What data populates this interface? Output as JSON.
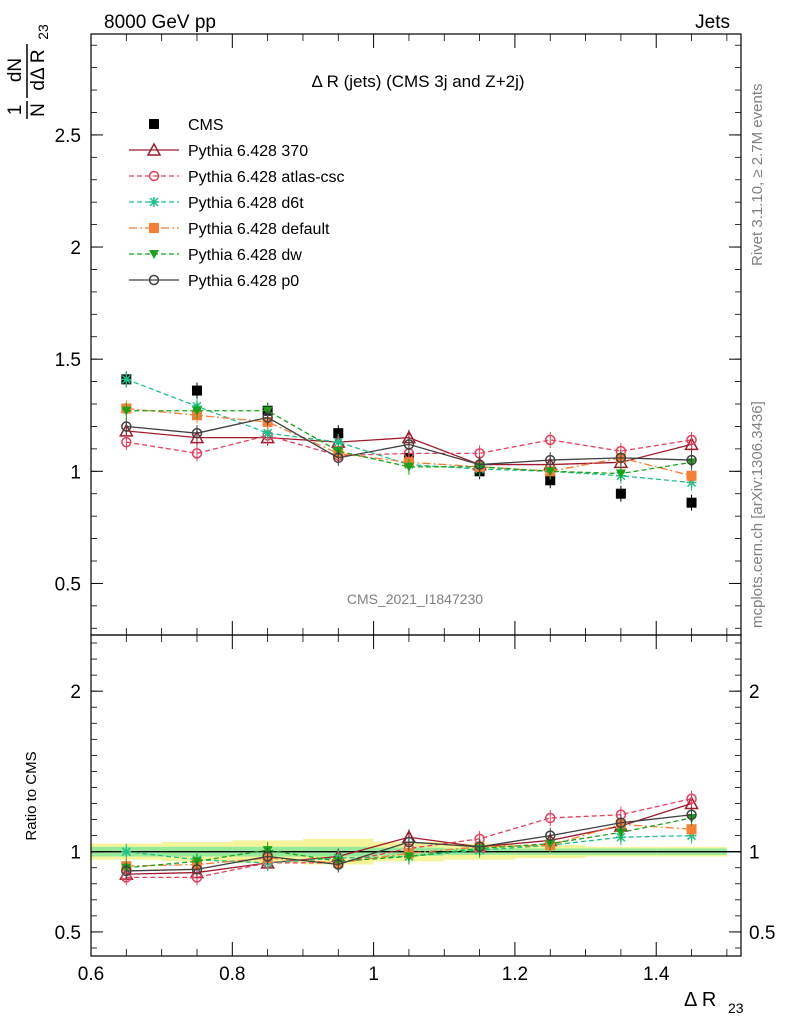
{
  "header": {
    "left": "8000 GeV pp",
    "right": "Jets",
    "side_top": "Rivet 3.1.10, ≥ 2.7M events",
    "side_bottom": "mcplots.cern.ch [arXiv:1306.3436]"
  },
  "chart_data": [
    {
      "type": "line",
      "title": "Δ R (jets) (CMS 3j and Z+2j)",
      "watermark": "CMS_2021_I1847230",
      "ylabel_parts": {
        "num": "1",
        "den": "N",
        "dnum": "dN",
        "dden": "dΔ R",
        "sub": "23"
      },
      "xlim": [
        0.6,
        1.52
      ],
      "ylim": [
        0.27,
        2.95
      ],
      "yticks": [
        0.5,
        1,
        1.5,
        2,
        2.5
      ],
      "ytick_labels": [
        "0.5",
        "1",
        "1.5",
        "2",
        "2.5"
      ],
      "x": [
        0.65,
        0.75,
        0.85,
        0.95,
        1.05,
        1.15,
        1.25,
        1.35,
        1.45
      ],
      "legend_position": "top-left",
      "series": [
        {
          "name": "CMS",
          "color": "#000000",
          "marker": "square",
          "line": "none",
          "values": [
            1.41,
            1.36,
            1.27,
            1.17,
            1.06,
            1.0,
            0.96,
            0.9,
            0.86
          ]
        },
        {
          "name": "Pythia 6.428 370",
          "color": "#a01b2b",
          "marker": "triangle-open",
          "line": "solid",
          "values": [
            1.18,
            1.15,
            1.15,
            1.13,
            1.15,
            1.03,
            1.03,
            1.04,
            1.12
          ]
        },
        {
          "name": "Pythia 6.428 atlas-csc",
          "color": "#e83e5c",
          "marker": "circle-open",
          "line": "dashed",
          "values": [
            1.13,
            1.08,
            1.16,
            1.07,
            1.08,
            1.08,
            1.14,
            1.09,
            1.14
          ]
        },
        {
          "name": "Pythia 6.428 d6t",
          "color": "#1ec08a",
          "marker": "star",
          "line": "dashed",
          "values": [
            1.41,
            1.29,
            1.17,
            1.13,
            1.03,
            1.01,
            1.0,
            0.98,
            0.95
          ]
        },
        {
          "name": "Pythia 6.428 default",
          "color": "#f47f35",
          "marker": "square",
          "line": "dashdot",
          "values": [
            1.28,
            1.25,
            1.22,
            1.08,
            1.04,
            1.02,
            1.0,
            1.06,
            0.98
          ]
        },
        {
          "name": "Pythia 6.428 dw",
          "color": "#1aa31a",
          "marker": "triangle-down",
          "line": "dashed",
          "values": [
            1.27,
            1.27,
            1.27,
            1.09,
            1.02,
            1.02,
            1.0,
            0.99,
            1.04
          ]
        },
        {
          "name": "Pythia 6.428 p0",
          "color": "#404040",
          "marker": "circle-open",
          "line": "solid",
          "values": [
            1.2,
            1.17,
            1.24,
            1.06,
            1.12,
            1.03,
            1.05,
            1.06,
            1.05
          ]
        }
      ]
    },
    {
      "type": "line",
      "ylabel": "Ratio to CMS",
      "xlabel_main": "Δ R",
      "xlabel_sub": "23",
      "xlim": [
        0.6,
        1.52
      ],
      "ylim": [
        0.35,
        2.35
      ],
      "yticks": [
        0.5,
        1,
        2
      ],
      "ytick_labels": [
        "0.5",
        "1",
        "2"
      ],
      "xticks": [
        0.6,
        0.8,
        1.0,
        1.2,
        1.4
      ],
      "xtick_labels": [
        "0.6",
        "0.8",
        "1",
        "1.2",
        "1.4"
      ],
      "x": [
        0.65,
        0.75,
        0.85,
        0.95,
        1.05,
        1.15,
        1.25,
        1.35,
        1.45
      ],
      "band_stat": [
        0.03,
        0.03,
        0.03,
        0.03,
        0.025,
        0.02,
        0.02,
        0.02,
        0.02
      ],
      "band_total": [
        0.05,
        0.06,
        0.07,
        0.08,
        0.06,
        0.05,
        0.04,
        0.03,
        0.03
      ],
      "series": [
        {
          "name": "Pythia 6.428 370",
          "color": "#a01b2b",
          "marker": "triangle-open",
          "line": "solid",
          "values": [
            0.86,
            0.87,
            0.93,
            0.97,
            1.09,
            1.03,
            1.07,
            1.16,
            1.3
          ]
        },
        {
          "name": "Pythia 6.428 atlas-csc",
          "color": "#e83e5c",
          "marker": "circle-open",
          "line": "dashed",
          "values": [
            0.84,
            0.84,
            0.93,
            0.93,
            1.02,
            1.08,
            1.21,
            1.23,
            1.33
          ]
        },
        {
          "name": "Pythia 6.428 d6t",
          "color": "#1ec08a",
          "marker": "star",
          "line": "dashed",
          "values": [
            1.0,
            0.95,
            0.93,
            0.96,
            0.97,
            1.01,
            1.04,
            1.09,
            1.1
          ]
        },
        {
          "name": "Pythia 6.428 default",
          "color": "#f47f35",
          "marker": "square",
          "line": "dashdot",
          "values": [
            0.91,
            0.92,
            0.96,
            0.93,
            0.99,
            1.03,
            1.04,
            1.17,
            1.14
          ]
        },
        {
          "name": "Pythia 6.428 dw",
          "color": "#1aa31a",
          "marker": "triangle-down",
          "line": "dashed",
          "values": [
            0.9,
            0.94,
            1.01,
            0.94,
            0.97,
            1.02,
            1.05,
            1.12,
            1.21
          ]
        },
        {
          "name": "Pythia 6.428 p0",
          "color": "#404040",
          "marker": "circle-open",
          "line": "solid",
          "values": [
            0.88,
            0.89,
            0.97,
            0.92,
            1.06,
            1.03,
            1.1,
            1.18,
            1.23
          ]
        }
      ]
    }
  ]
}
